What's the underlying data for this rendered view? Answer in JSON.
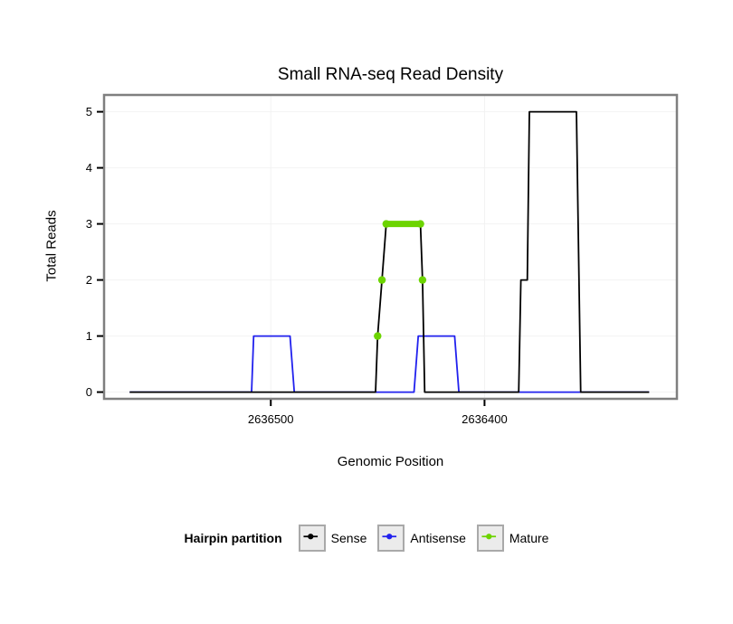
{
  "chart_data": {
    "type": "line",
    "title": "Small RNA-seq Read Density",
    "xlabel": "Genomic Position",
    "ylabel": "Total Reads",
    "x_domain": [
      2636578,
      2636310
    ],
    "y_domain": [
      -0.12,
      5.3
    ],
    "x_ticks": [
      {
        "value": 2636500,
        "label": "2636500"
      },
      {
        "value": 2636400,
        "label": "2636400"
      }
    ],
    "y_ticks": [
      {
        "value": 0,
        "label": "0"
      },
      {
        "value": 1,
        "label": "1"
      },
      {
        "value": 2,
        "label": "2"
      },
      {
        "value": 3,
        "label": "3"
      },
      {
        "value": 4,
        "label": "4"
      },
      {
        "value": 5,
        "label": "5"
      }
    ],
    "colors": {
      "sense": "#000000",
      "antisense": "#2121ee",
      "mature": "#6cd400"
    },
    "series": {
      "sense": [
        [
          2636566,
          0
        ],
        [
          2636451,
          0
        ],
        [
          2636450,
          1
        ],
        [
          2636448,
          2
        ],
        [
          2636446,
          3
        ],
        [
          2636430,
          3
        ],
        [
          2636429,
          2
        ],
        [
          2636428,
          0
        ],
        [
          2636384,
          0
        ],
        [
          2636383,
          2
        ],
        [
          2636380,
          2
        ],
        [
          2636379,
          5
        ],
        [
          2636357,
          5
        ],
        [
          2636355,
          0
        ],
        [
          2636323,
          0
        ]
      ],
      "antisense": [
        [
          2636566,
          0
        ],
        [
          2636509,
          0
        ],
        [
          2636508,
          1
        ],
        [
          2636491,
          1
        ],
        [
          2636489,
          0
        ],
        [
          2636433,
          0
        ],
        [
          2636431,
          1
        ],
        [
          2636414,
          1
        ],
        [
          2636412,
          0
        ],
        [
          2636323,
          0
        ]
      ],
      "mature_segment": {
        "y": 3,
        "x_start": 2636446,
        "x_end": 2636430
      },
      "mature_points": [
        [
          2636450,
          1
        ],
        [
          2636448,
          2
        ],
        [
          2636446,
          3
        ],
        [
          2636430,
          3
        ],
        [
          2636429,
          2
        ]
      ]
    },
    "legend": {
      "title": "Hairpin partition",
      "entries": [
        {
          "label": "Sense",
          "color": "#000000"
        },
        {
          "label": "Antisense",
          "color": "#2121ee"
        },
        {
          "label": "Mature",
          "color": "#6cd400"
        }
      ]
    },
    "grid": "faint horizontal and vertical at ticks",
    "legend_position": "bottom"
  }
}
